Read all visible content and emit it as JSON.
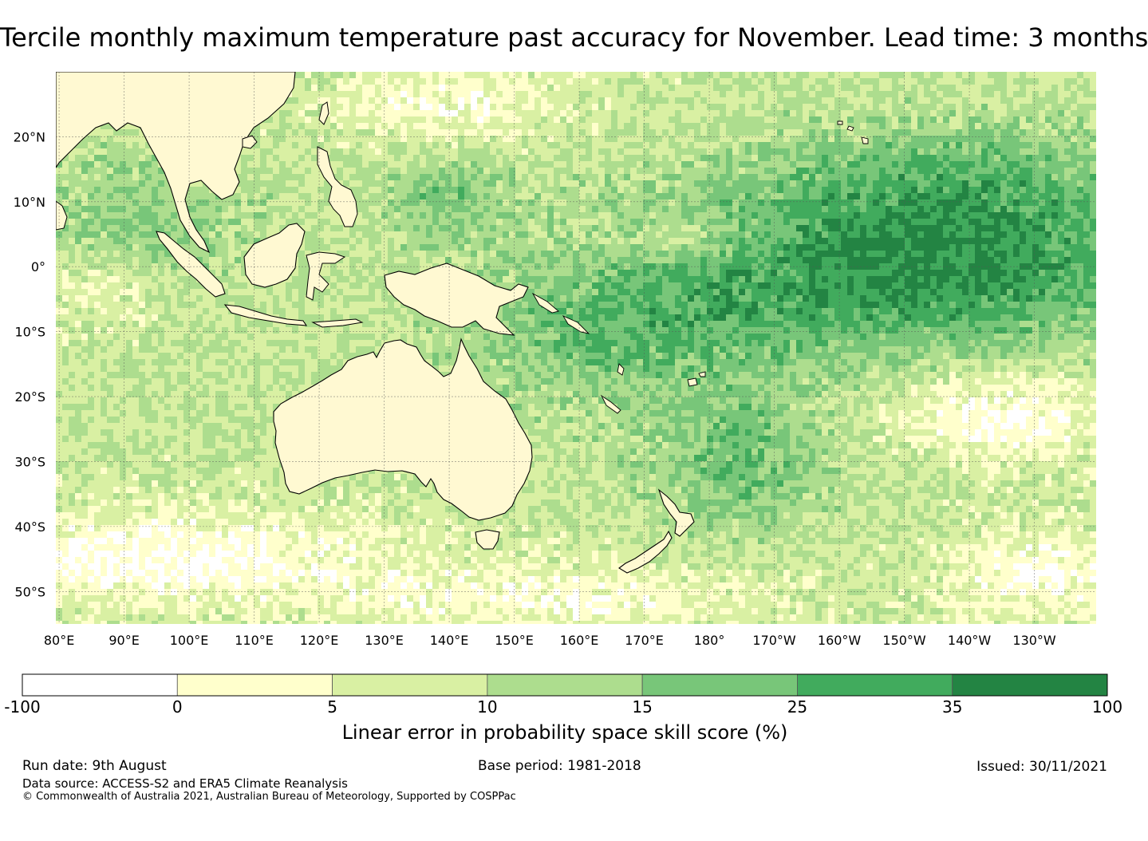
{
  "title": "Tercile monthly maximum temperature past accuracy for November. Lead time: 3 months",
  "map": {
    "lat_labels": [
      "20°N",
      "10°N",
      "0°",
      "10°S",
      "20°S",
      "30°S",
      "40°S",
      "50°S"
    ],
    "lat_values": [
      20,
      10,
      0,
      -10,
      -20,
      -30,
      -40,
      -50
    ],
    "lon_labels": [
      "80°E",
      "90°E",
      "100°E",
      "110°E",
      "120°E",
      "130°E",
      "140°E",
      "150°E",
      "160°E",
      "170°E",
      "180°",
      "170°W",
      "160°W",
      "150°W",
      "140°W",
      "130°W"
    ],
    "lon_values": [
      80,
      90,
      100,
      110,
      120,
      130,
      140,
      150,
      160,
      170,
      180,
      190,
      200,
      210,
      220,
      230
    ]
  },
  "colorbar": {
    "ticks": [
      "-100",
      "0",
      "5",
      "10",
      "15",
      "25",
      "35",
      "100"
    ],
    "colors": [
      "#ffffff",
      "#ffffcc",
      "#d9f0a3",
      "#addd8e",
      "#78c679",
      "#41ab5d",
      "#238443"
    ],
    "label": "Linear error in probability space skill score (%)"
  },
  "footer": {
    "run_date": "Run date: 9th August",
    "base_period": "Base period: 1981-2018",
    "issued": "Issued: 30/11/2021",
    "data_source": "Data source: ACCESS-S2 and ERA5 Climate Reanalysis",
    "copyright": "© Commonwealth of Australia 2021, Australian Bureau of Meteorology, Supported by COSPPac"
  }
}
